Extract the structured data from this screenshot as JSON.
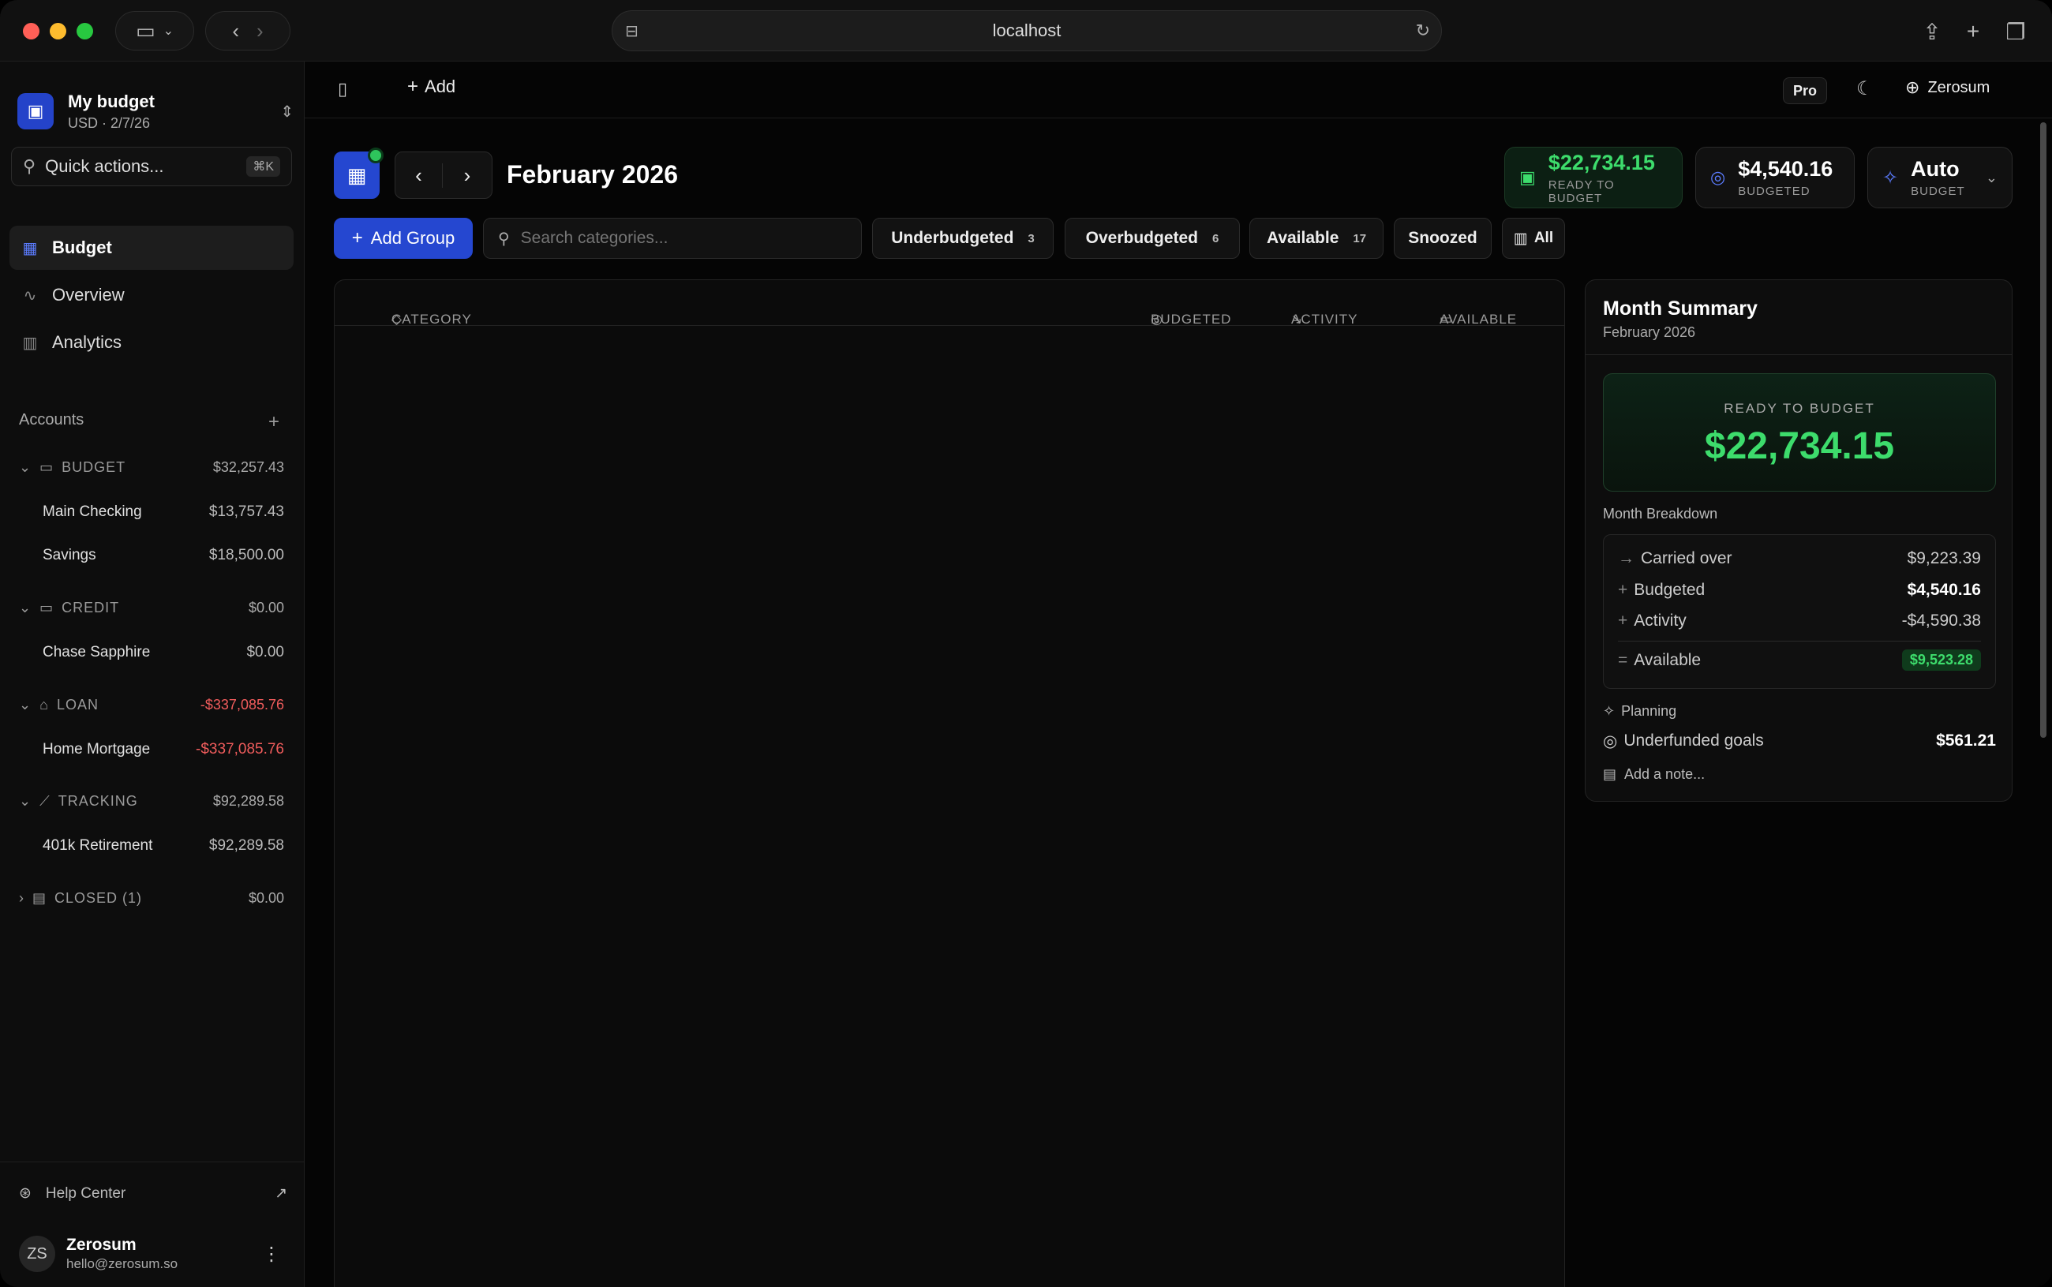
{
  "browser": {
    "url": "localhost"
  },
  "sidebar": {
    "budget_name": "My budget",
    "budget_meta": "USD · 2/7/26",
    "quick_actions": "Quick actions...",
    "quick_kbd": "⌘K",
    "nav": [
      {
        "label": "Budget"
      },
      {
        "label": "Overview"
      },
      {
        "label": "Analytics"
      }
    ],
    "accounts_title": "Accounts",
    "groups": [
      {
        "label": "BUDGET",
        "amount": "$32,257.43",
        "accounts": [
          {
            "name": "Main Checking",
            "amount": "$13,757.43"
          },
          {
            "name": "Savings",
            "amount": "$18,500.00"
          }
        ]
      },
      {
        "label": "CREDIT",
        "amount": "$0.00",
        "accounts": [
          {
            "name": "Chase Sapphire",
            "amount": "$0.00"
          }
        ]
      },
      {
        "label": "LOAN",
        "amount": "-$337,085.76",
        "accounts": [
          {
            "name": "Home Mortgage",
            "amount": "-$337,085.76"
          }
        ]
      },
      {
        "label": "TRACKING",
        "amount": "$92,289.58",
        "accounts": [
          {
            "name": "401k Retirement",
            "amount": "$92,289.58"
          }
        ]
      },
      {
        "label": "CLOSED (1)",
        "amount": "$0.00",
        "accounts": []
      }
    ],
    "help": "Help Center",
    "user": {
      "initials": "ZS",
      "name": "Zerosum",
      "email": "hello@zerosum.so"
    }
  },
  "topbar": {
    "add": "Add",
    "pro": "Pro",
    "account": "Zerosum"
  },
  "header": {
    "month": "February 2026",
    "ready": {
      "value": "$22,734.15",
      "label": "READY TO BUDGET"
    },
    "budgeted": {
      "value": "$4,540.16",
      "label": "BUDGETED"
    },
    "auto": {
      "value": "Auto",
      "label": "BUDGET"
    }
  },
  "toolbar": {
    "add_group": "Add Group",
    "search_placeholder": "Search categories...",
    "filters": [
      {
        "label": "Underbudgeted",
        "count": "3"
      },
      {
        "label": "Overbudgeted",
        "count": "6"
      },
      {
        "label": "Available",
        "count": "17"
      },
      {
        "label": "Snoozed",
        "count": ""
      },
      {
        "label": "All",
        "count": ""
      }
    ]
  },
  "table": {
    "headers": {
      "category": "CATEGORY",
      "budgeted": "BUDGETED",
      "activity": "ACTIVITY",
      "available": "AVAILABLE"
    }
  },
  "summary": {
    "title": "Month Summary",
    "subtitle": "February 2026",
    "ready_label": "READY TO BUDGET",
    "ready_value": "$22,734.15",
    "breakdown_title": "Month Breakdown",
    "carried_label": "Carried over",
    "carried_value": "$9,223.39",
    "budgeted_label": "Budgeted",
    "budgeted_value": "$4,540.16",
    "activity_label": "Activity",
    "activity_value": "-$4,590.38",
    "available_label": "Available",
    "available_value": "$9,523.28",
    "planning": "Planning",
    "underfunded_label": "Underfunded goals",
    "underfunded_value": "$561.21",
    "note": "Add a note..."
  },
  "colors": {
    "accent": "#2547d0",
    "positive": "#3ddc6c",
    "warning": "#f4c13a",
    "negative": "#f05c5c"
  }
}
